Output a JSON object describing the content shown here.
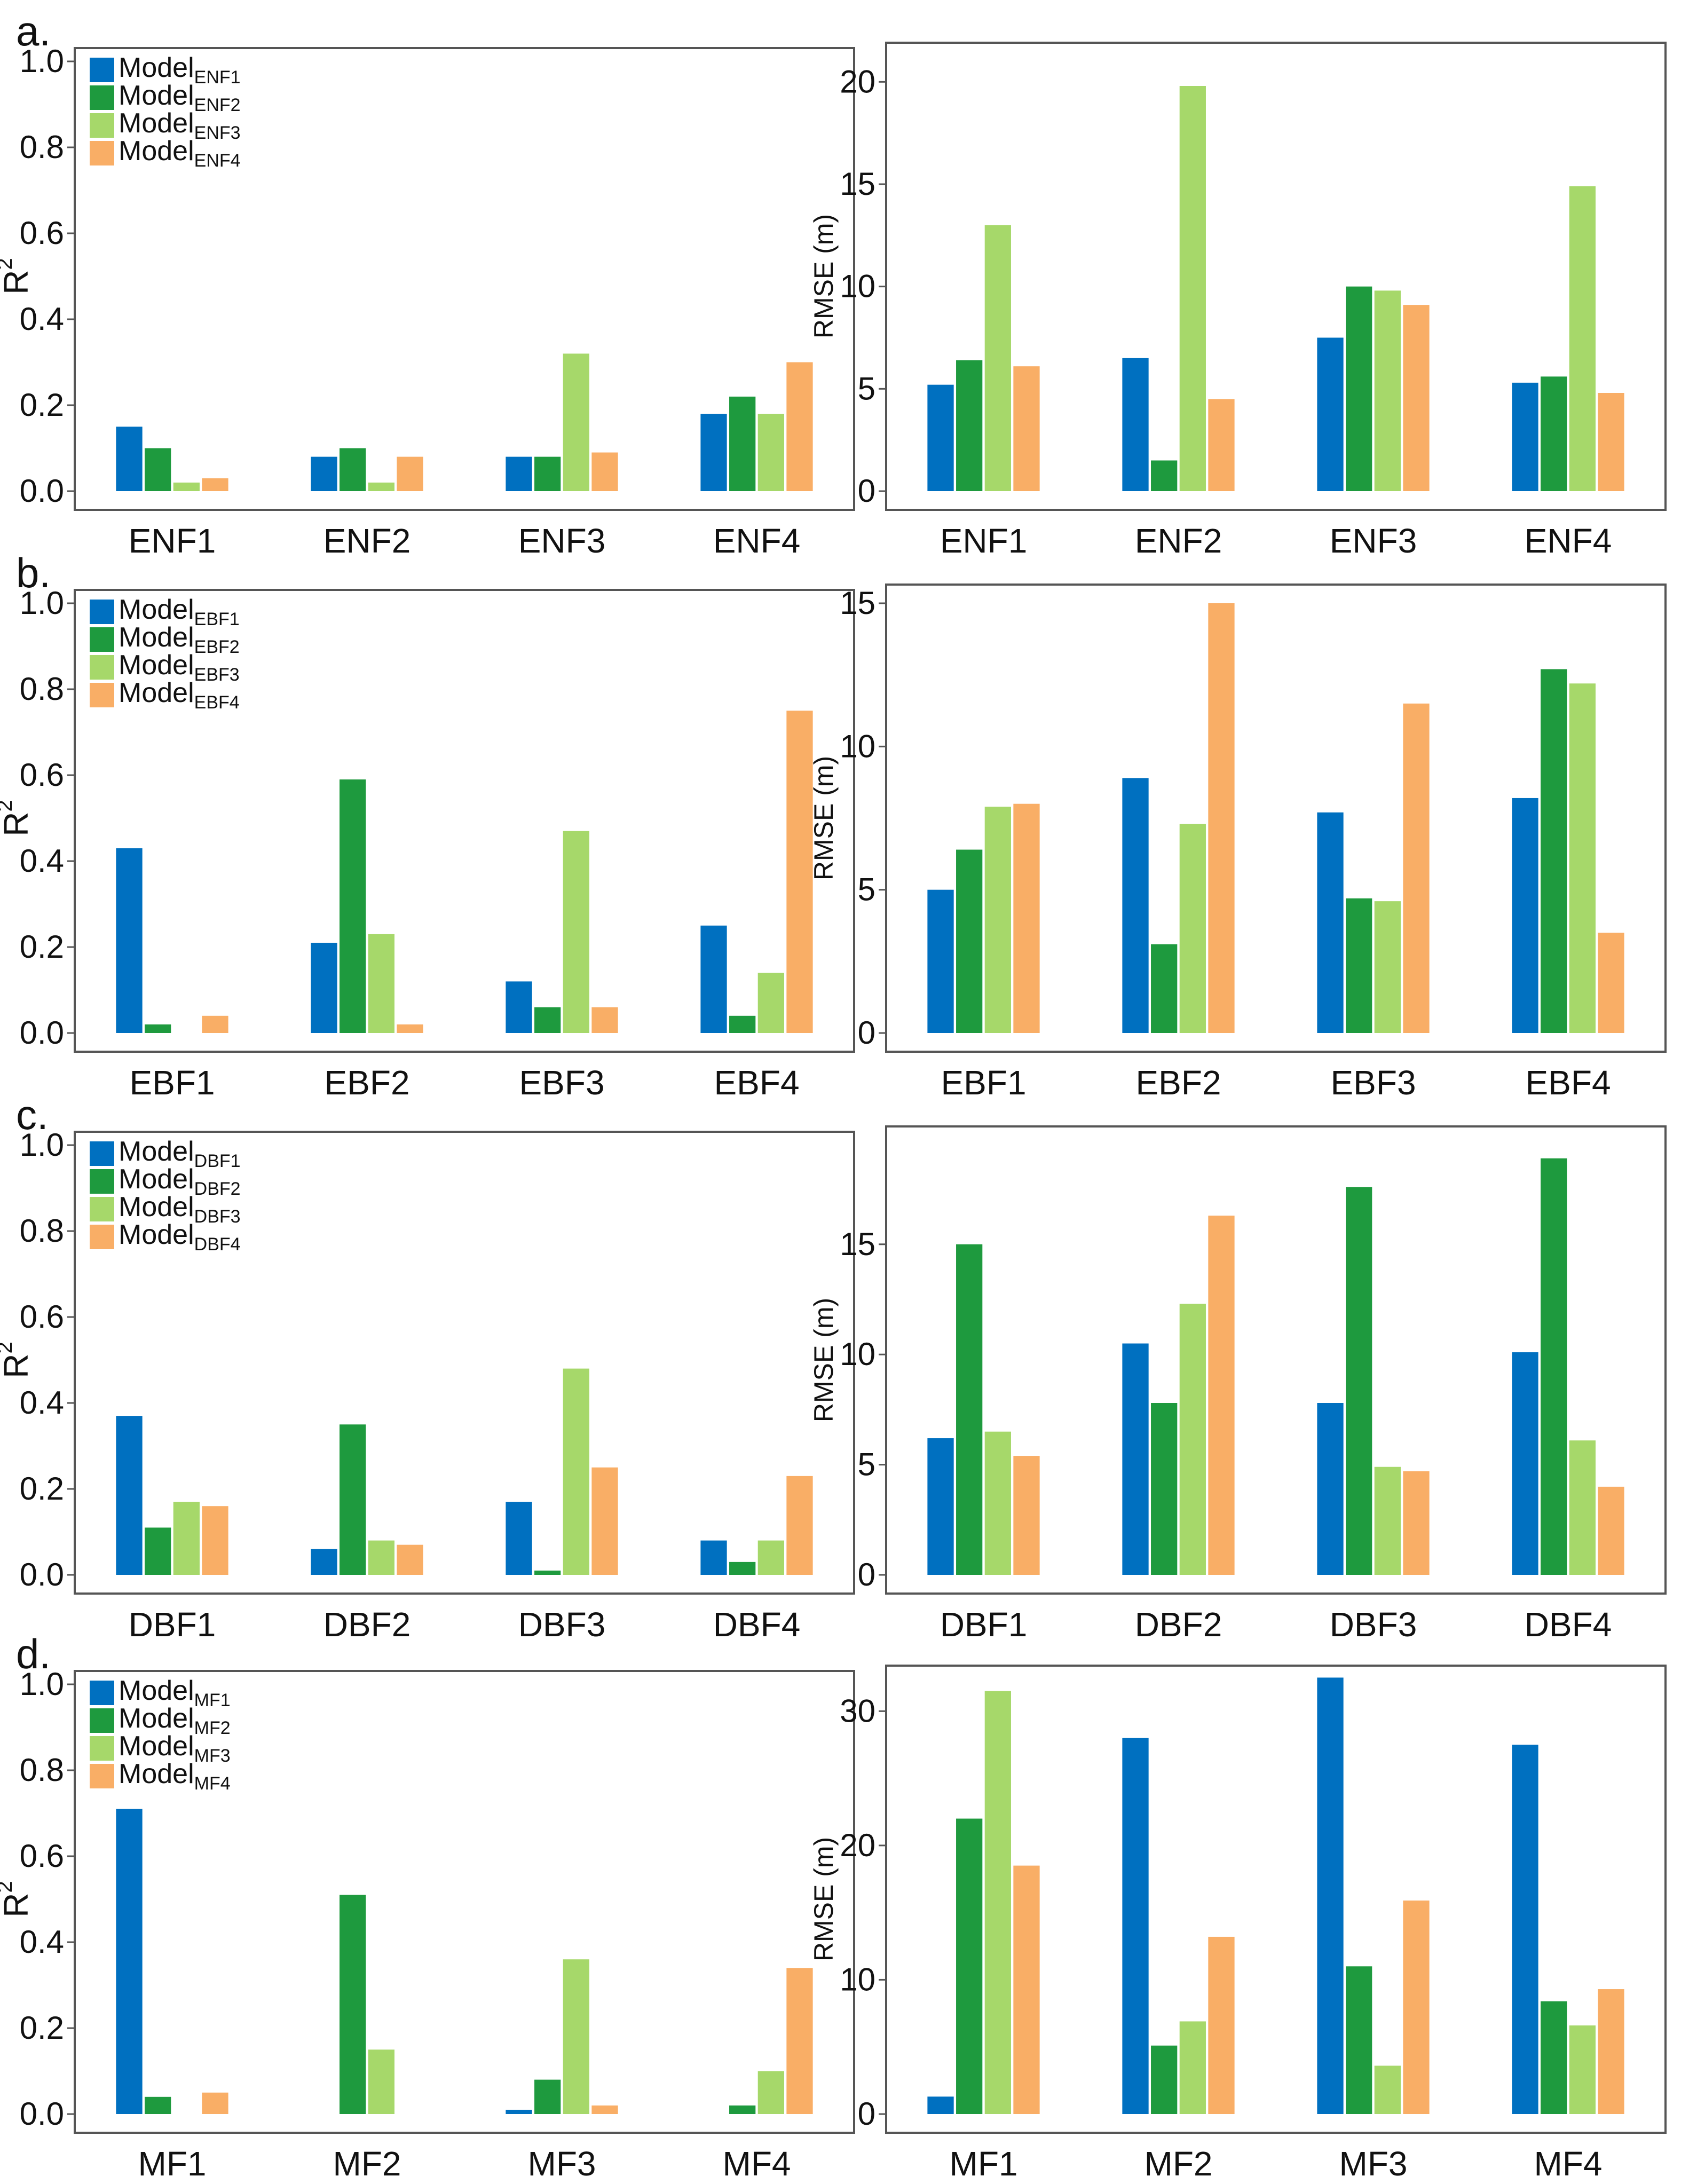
{
  "colors": {
    "model1": "#0070C0",
    "model2": "#1E9A3E",
    "model3": "#A6D86A",
    "model4": "#F9AE66"
  },
  "chart_data": [
    {
      "panel": "a.",
      "type": "bar",
      "ylabel": "R",
      "ylabel_sup": "2",
      "ylim": [
        0,
        1.0
      ],
      "yticks": [
        "0.0",
        "0.2",
        "0.4",
        "0.6",
        "0.8",
        "1.0"
      ],
      "categories": [
        "ENF1",
        "ENF2",
        "ENF3",
        "ENF4"
      ],
      "legend": {
        "base": "Model",
        "subs": [
          "ENF1",
          "ENF2",
          "ENF3",
          "ENF4"
        ]
      },
      "series": [
        {
          "name": "ModelENF1",
          "values": [
            0.15,
            0.08,
            0.08,
            0.18
          ]
        },
        {
          "name": "ModelENF2",
          "values": [
            0.1,
            0.1,
            0.08,
            0.22
          ]
        },
        {
          "name": "ModelENF3",
          "values": [
            0.02,
            0.02,
            0.32,
            0.18
          ]
        },
        {
          "name": "ModelENF4",
          "values": [
            0.03,
            0.08,
            0.09,
            0.3
          ]
        }
      ]
    },
    {
      "panel": "",
      "type": "bar",
      "ylabel": "RMSE (m)",
      "ylim": [
        0,
        21
      ],
      "yticks": [
        "0",
        "5",
        "10",
        "15",
        "20"
      ],
      "categories": [
        "ENF1",
        "ENF2",
        "ENF3",
        "ENF4"
      ],
      "series": [
        {
          "name": "ModelENF1",
          "values": [
            5.2,
            6.5,
            7.5,
            5.3
          ]
        },
        {
          "name": "ModelENF2",
          "values": [
            6.4,
            1.5,
            10.0,
            5.6
          ]
        },
        {
          "name": "ModelENF3",
          "values": [
            13.0,
            19.8,
            9.8,
            14.9
          ]
        },
        {
          "name": "ModelENF4",
          "values": [
            6.1,
            4.5,
            9.1,
            4.8
          ]
        }
      ]
    },
    {
      "panel": "b.",
      "type": "bar",
      "ylabel": "R",
      "ylabel_sup": "2",
      "ylim": [
        0,
        1.0
      ],
      "yticks": [
        "0.0",
        "0.2",
        "0.4",
        "0.6",
        "0.8",
        "1.0"
      ],
      "categories": [
        "EBF1",
        "EBF2",
        "EBF3",
        "EBF4"
      ],
      "legend": {
        "base": "Model",
        "subs": [
          "EBF1",
          "EBF2",
          "EBF3",
          "EBF4"
        ]
      },
      "series": [
        {
          "name": "ModelEBF1",
          "values": [
            0.43,
            0.21,
            0.12,
            0.25
          ]
        },
        {
          "name": "ModelEBF2",
          "values": [
            0.02,
            0.59,
            0.06,
            0.04
          ]
        },
        {
          "name": "ModelEBF3",
          "values": [
            0.0,
            0.23,
            0.47,
            0.14
          ]
        },
        {
          "name": "ModelEBF4",
          "values": [
            0.04,
            0.02,
            0.06,
            0.75
          ]
        }
      ]
    },
    {
      "panel": "",
      "type": "bar",
      "ylabel": "RMSE (m)",
      "ylim": [
        0,
        15
      ],
      "yticks": [
        "0",
        "5",
        "10",
        "15"
      ],
      "categories": [
        "EBF1",
        "EBF2",
        "EBF3",
        "EBF4"
      ],
      "series": [
        {
          "name": "ModelEBF1",
          "values": [
            5.0,
            8.9,
            7.7,
            8.2
          ]
        },
        {
          "name": "ModelEBF2",
          "values": [
            6.4,
            3.1,
            4.7,
            12.7
          ]
        },
        {
          "name": "ModelEBF3",
          "values": [
            7.9,
            7.3,
            4.6,
            12.2
          ]
        },
        {
          "name": "ModelEBF4",
          "values": [
            8.0,
            15.0,
            11.5,
            3.5
          ]
        }
      ]
    },
    {
      "panel": "c.",
      "type": "bar",
      "ylabel": "R",
      "ylabel_sup": "2",
      "ylim": [
        0,
        1.0
      ],
      "yticks": [
        "0.0",
        "0.2",
        "0.4",
        "0.6",
        "0.8",
        "1.0"
      ],
      "categories": [
        "DBF1",
        "DBF2",
        "DBF3",
        "DBF4"
      ],
      "legend": {
        "base": "Model",
        "subs": [
          "DBF1",
          "DBF2",
          "DBF3",
          "DBF4"
        ]
      },
      "series": [
        {
          "name": "ModelDBF1",
          "values": [
            0.37,
            0.06,
            0.17,
            0.08
          ]
        },
        {
          "name": "ModelDBF2",
          "values": [
            0.11,
            0.35,
            0.01,
            0.03
          ]
        },
        {
          "name": "ModelDBF3",
          "values": [
            0.17,
            0.08,
            0.48,
            0.08
          ]
        },
        {
          "name": "ModelDBF4",
          "values": [
            0.16,
            0.07,
            0.25,
            0.23
          ]
        }
      ]
    },
    {
      "panel": "",
      "type": "bar",
      "ylabel": "RMSE (m)",
      "ylim": [
        0,
        19.5
      ],
      "yticks": [
        "0",
        "5",
        "10",
        "15"
      ],
      "categories": [
        "DBF1",
        "DBF2",
        "DBF3",
        "DBF4"
      ],
      "series": [
        {
          "name": "ModelDBF1",
          "values": [
            6.2,
            10.5,
            7.8,
            10.1
          ]
        },
        {
          "name": "ModelDBF2",
          "values": [
            15.0,
            7.8,
            17.6,
            18.9
          ]
        },
        {
          "name": "ModelDBF3",
          "values": [
            6.5,
            12.3,
            4.9,
            6.1
          ]
        },
        {
          "name": "ModelDBF4",
          "values": [
            5.4,
            16.3,
            4.7,
            4.0
          ]
        }
      ]
    },
    {
      "panel": "d.",
      "type": "bar",
      "ylabel": "R",
      "ylabel_sup": "2",
      "ylim": [
        0,
        1.0
      ],
      "yticks": [
        "0.0",
        "0.2",
        "0.4",
        "0.6",
        "0.8",
        "1.0"
      ],
      "categories": [
        "MF1",
        "MF2",
        "MF3",
        "MF4"
      ],
      "legend": {
        "base": "Model",
        "subs": [
          "MF1",
          "MF2",
          "MF3",
          "MF4"
        ]
      },
      "series": [
        {
          "name": "ModelMF1",
          "values": [
            0.71,
            0.0,
            0.01,
            0.0
          ]
        },
        {
          "name": "ModelMF2",
          "values": [
            0.04,
            0.51,
            0.08,
            0.02
          ]
        },
        {
          "name": "ModelMF3",
          "values": [
            0.0,
            0.15,
            0.36,
            0.1
          ]
        },
        {
          "name": "ModelMF4",
          "values": [
            0.05,
            0.0,
            0.02,
            0.34
          ]
        }
      ]
    },
    {
      "panel": "",
      "type": "bar",
      "ylabel": "RMSE (m)",
      "ylim": [
        0,
        32
      ],
      "yticks": [
        "0",
        "10",
        "20",
        "30"
      ],
      "categories": [
        "MF1",
        "MF2",
        "MF3",
        "MF4"
      ],
      "series": [
        {
          "name": "ModelMF1",
          "values": [
            1.3,
            28.0,
            32.5,
            27.5
          ]
        },
        {
          "name": "ModelMF2",
          "values": [
            22.0,
            5.1,
            11.0,
            8.4
          ]
        },
        {
          "name": "ModelMF3",
          "values": [
            31.5,
            6.9,
            3.6,
            6.6
          ]
        },
        {
          "name": "ModelMF4",
          "values": [
            18.5,
            13.2,
            15.9,
            9.3
          ]
        }
      ]
    }
  ]
}
